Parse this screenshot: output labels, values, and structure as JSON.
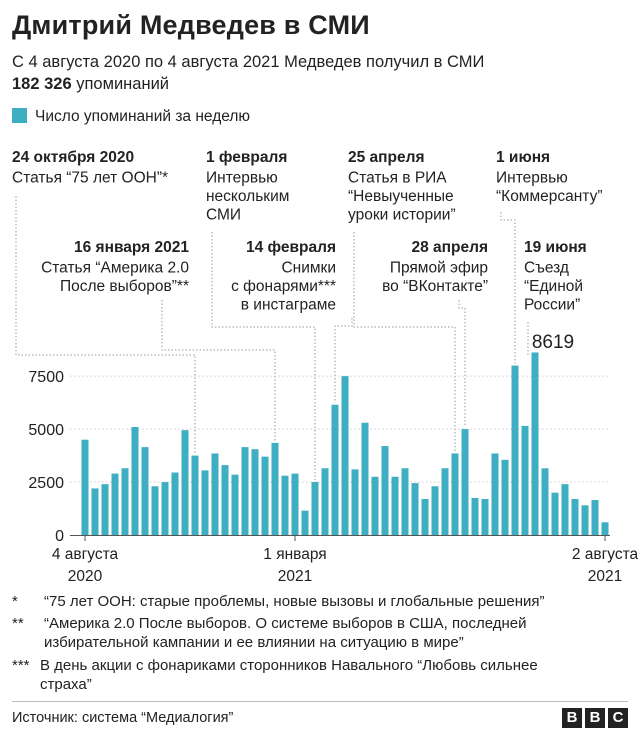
{
  "title": "Дмитрий Медведев в СМИ",
  "subtitle_line1": "С 4 августа 2020 по 4 августа 2021 Медведев получил в СМИ",
  "subtitle_total": "182 326",
  "subtitle_tail": "упоминаний",
  "colors": {
    "bar": "#3eaec2",
    "text": "#222222",
    "grid": "#cccccc",
    "leader": "#999999"
  },
  "chart_data": {
    "type": "bar",
    "legend": [
      {
        "name": "Число упоминаний за неделю",
        "color": "#3eaec2"
      }
    ],
    "series": [
      {
        "name": "Число упоминаний за неделю",
        "values": [
          4500,
          2200,
          2400,
          2900,
          3150,
          5100,
          4150,
          2300,
          2500,
          2950,
          4950,
          3750,
          3050,
          3850,
          3300,
          2850,
          4150,
          4050,
          3700,
          4350,
          2800,
          2900,
          1150,
          2500,
          3150,
          6150,
          7500,
          3100,
          5300,
          2750,
          4200,
          2750,
          3150,
          2450,
          1700,
          2300,
          3150,
          3850,
          5000,
          1750,
          1700,
          3850,
          3550,
          8000,
          5150,
          8619,
          3150,
          2000,
          2400,
          1700,
          1400,
          1650,
          600
        ]
      }
    ],
    "y_ticks": [
      0,
      2500,
      5000,
      7500
    ],
    "y_tick_labels": [
      "0",
      "2500",
      "5000",
      "7500"
    ],
    "ylim": [
      0,
      9000
    ],
    "x_ticks": [
      {
        "index": 0,
        "line1": "4 августа",
        "line2": "2020"
      },
      {
        "index": 21,
        "line1": "1 января",
        "line2": "2021"
      },
      {
        "index": 52,
        "line1": "2 августа",
        "line2": "2021"
      }
    ],
    "peak_label": {
      "index": 45,
      "text": "8619"
    },
    "annotations": [
      {
        "index": 11,
        "date": "24 октября 2020",
        "lines": [
          "Статья “75 лет ООН”*"
        ]
      },
      {
        "index": 19,
        "date": "16 января 2021",
        "lines": [
          "Статья “Америка 2.0",
          "После выборов”**"
        ]
      },
      {
        "index": 23,
        "date": "1 февраля",
        "lines": [
          "Интервью",
          "нескольким",
          "СМИ"
        ]
      },
      {
        "index": 25,
        "date": "14 февраля",
        "lines": [
          "Снимки",
          "с фонарями***",
          "в инстаграме"
        ]
      },
      {
        "index": 37,
        "date": "25 апреля",
        "lines": [
          "Статья в РИА",
          "“Невыученные",
          "уроки истории”"
        ]
      },
      {
        "index": 38,
        "date": "28 апреля",
        "lines": [
          "Прямой эфир",
          "во “ВКонтакте”"
        ]
      },
      {
        "index": 43,
        "date": "1 июня",
        "lines": [
          "Интервью",
          "“Коммерсанту”"
        ]
      },
      {
        "index": 45,
        "date": "19 июня",
        "lines": [
          "Съезд",
          "“Единой",
          "России”"
        ]
      }
    ]
  },
  "footnotes": [
    {
      "mark": "*",
      "lines": [
        "“75 лет ООН: старые проблемы, новые вызовы и глобальные решения”"
      ]
    },
    {
      "mark": "**",
      "lines": [
        "“Америка 2.0 После выборов. О системе выборов в США, последней",
        "избирательной кампании и ее влиянии на ситуацию в мире”"
      ]
    },
    {
      "mark": "***",
      "lines": [
        "В день акции с фонариками сторонников Навального “Любовь сильнее",
        "страха”"
      ]
    }
  ],
  "source": "Источник:  система “Медиалогия”",
  "logo": [
    "B",
    "B",
    "C"
  ]
}
